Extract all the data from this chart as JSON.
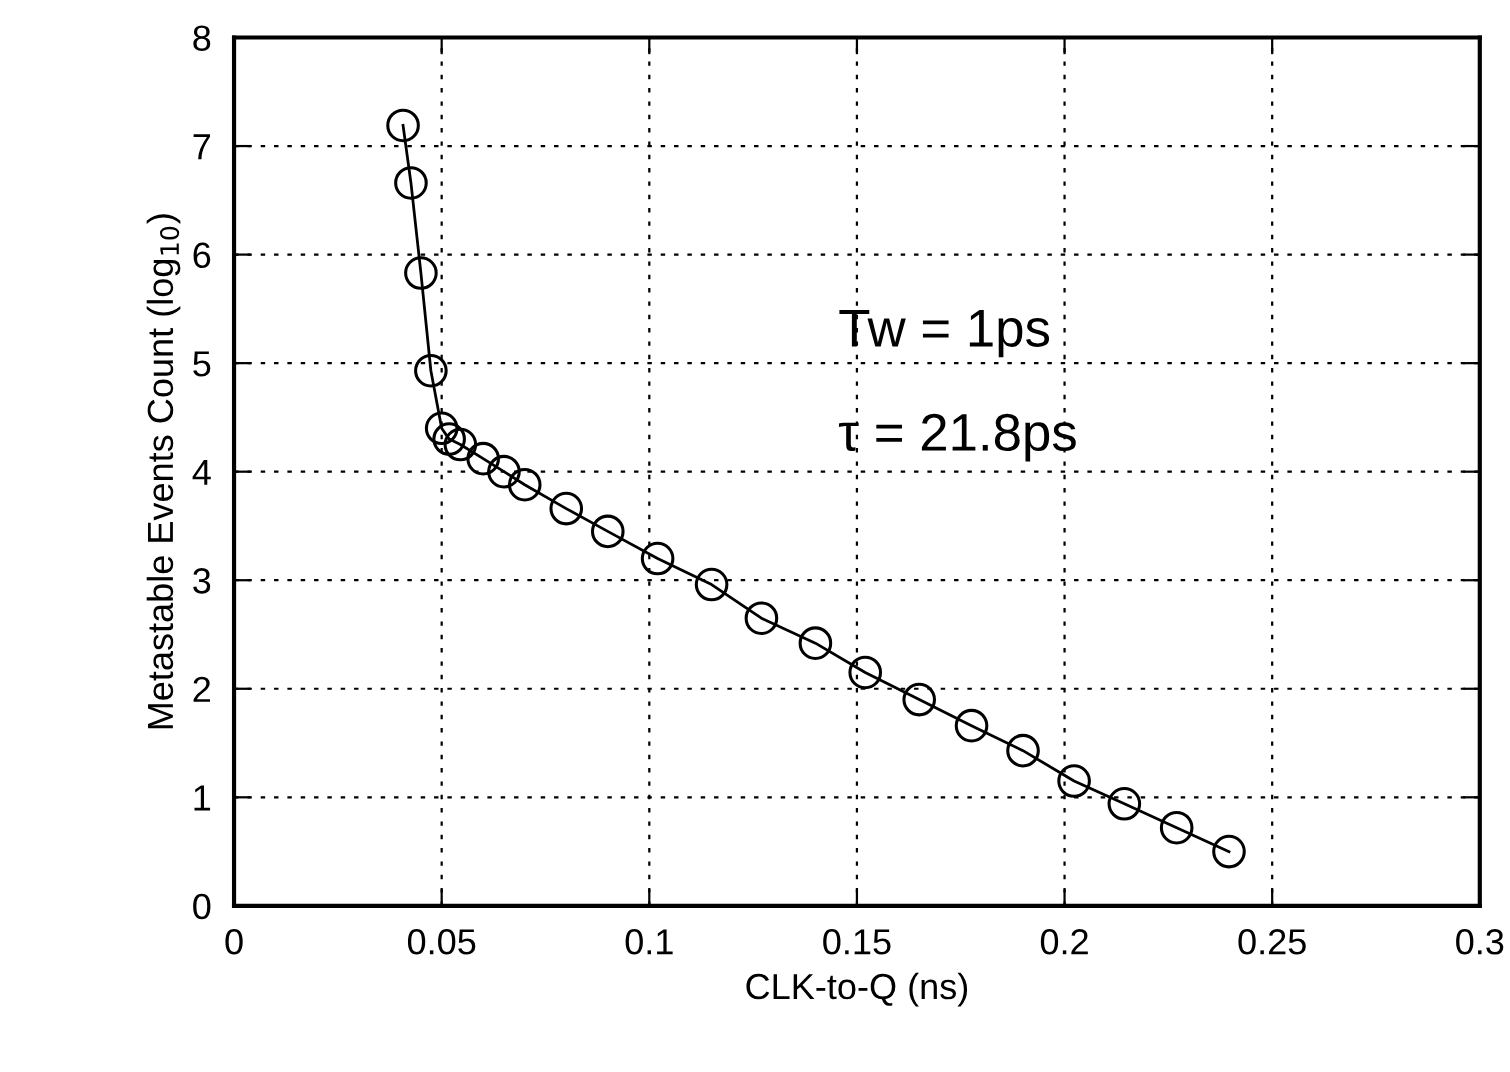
{
  "chart_data": {
    "type": "line",
    "xlabel": "CLK-to-Q (ns)",
    "ylabel": "Metastable Events Count (log$_{10}$)",
    "annotations": [
      "Tw = 1ps",
      "τ = 21.8ps"
    ],
    "x": [
      0.0407,
      0.0426,
      0.045,
      0.0474,
      0.05,
      0.0518,
      0.0545,
      0.06,
      0.065,
      0.07,
      0.08,
      0.09,
      0.102,
      0.115,
      0.127,
      0.14,
      0.152,
      0.165,
      0.1776,
      0.19,
      0.2023,
      0.2144,
      0.227,
      0.2396
    ],
    "series": [
      {
        "color": "#000000",
        "values": [
          7.19,
          6.66,
          5.83,
          4.93,
          4.4,
          4.3,
          4.25,
          4.12,
          4.0,
          3.88,
          3.66,
          3.45,
          3.2,
          2.96,
          2.65,
          2.42,
          2.15,
          1.9,
          1.66,
          1.43,
          1.15,
          0.94,
          0.72,
          0.5
        ]
      }
    ],
    "xlim": [
      0,
      0.3
    ],
    "xticks": [
      0,
      0.05,
      0.1,
      0.15,
      0.2,
      0.25,
      0.3
    ],
    "ylim": [
      0,
      8
    ],
    "yticks": [
      0,
      1,
      2,
      3,
      4,
      5,
      6,
      7,
      8
    ],
    "grid": true,
    "marker": "circle",
    "line_style": "solid",
    "legend": false
  }
}
